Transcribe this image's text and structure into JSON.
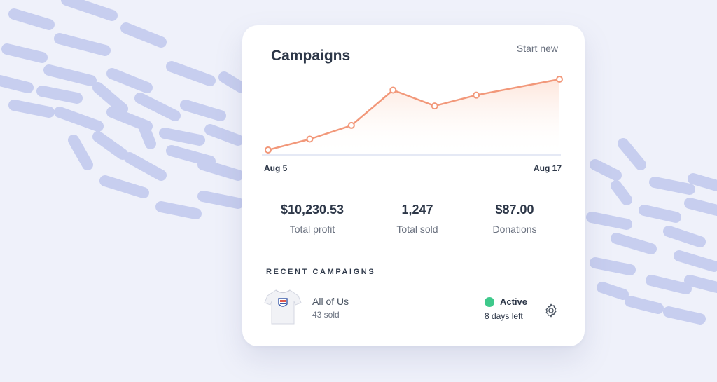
{
  "card": {
    "title": "Campaigns",
    "start_new": "Start new"
  },
  "chart_data": {
    "type": "line",
    "x": [
      "Aug 5",
      "",
      "",
      "",
      "",
      "",
      "",
      "Aug 17"
    ],
    "values": [
      2,
      17,
      36,
      85,
      63,
      78,
      null,
      100
    ],
    "xlabel": "",
    "ylabel": "",
    "x_tick_labels": [
      "Aug 5",
      "Aug 17"
    ],
    "grid": false,
    "line_color": "#f2987a",
    "fill": "area-gradient"
  },
  "stats": [
    {
      "value": "$10,230.53",
      "label": "Total profit"
    },
    {
      "value": "1,247",
      "label": "Total sold"
    },
    {
      "value": "$87.00",
      "label": "Donations"
    }
  ],
  "recent": {
    "section_title": "RECENT CAMPAIGNS",
    "campaigns": [
      {
        "name": "All of Us",
        "sold": "43 sold",
        "status": "Active",
        "status_color": "#3ec98b",
        "time_left": "8 days left",
        "thumbnail_icon": "tshirt-icon",
        "settings_icon": "gear-icon"
      }
    ]
  },
  "colors": {
    "background": "#eff1fa",
    "stroke_decoration": "#c3cbee",
    "accent_line": "#f2987a",
    "active_green": "#3ec98b"
  }
}
